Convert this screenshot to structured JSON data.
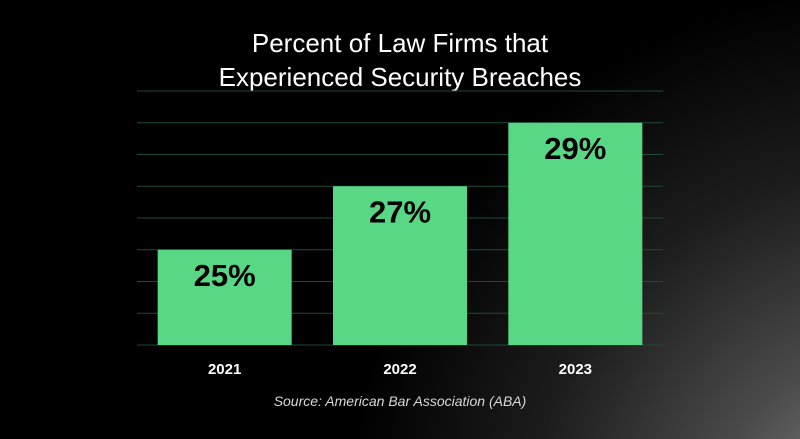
{
  "chart_data": {
    "type": "bar",
    "title_lines": [
      "Percent of Law Firms that",
      "Experienced Security Breaches"
    ],
    "categories": [
      "2021",
      "2022",
      "2023"
    ],
    "values": [
      25,
      27,
      29
    ],
    "data_labels": [
      "25%",
      "27%",
      "29%"
    ],
    "unit": "%",
    "ylim": [
      22,
      30
    ],
    "gridlines": [
      22,
      23,
      24,
      25,
      26,
      27,
      28,
      29,
      30
    ],
    "grid": true,
    "xlabel": "",
    "ylabel": "",
    "legend": "none",
    "source": "Source: American Bar Association (ABA)"
  },
  "colors": {
    "bar": "#58d884",
    "grid": "#1f4a34",
    "text": "#ffffff",
    "bar_label": "#000000"
  }
}
